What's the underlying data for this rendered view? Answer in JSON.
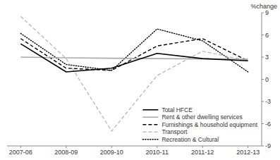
{
  "chart_data": {
    "type": "line",
    "categories": [
      "2007-08",
      "2008-09",
      "2009-10",
      "2010-11",
      "2011-12",
      "2012-13"
    ],
    "series": [
      {
        "name": "Total HFCE",
        "color": "#000000",
        "line_style": "solid",
        "values": [
          4.8,
          1.0,
          1.5,
          3.5,
          2.8,
          2.5
        ]
      },
      {
        "name": "Rent & other dwelling services",
        "color": "#aaaaaa",
        "line_style": "solid",
        "values": [
          3.0,
          2.9,
          2.85,
          2.8,
          2.75,
          2.7
        ]
      },
      {
        "name": "Furnishings & household equipment",
        "color": "#000000",
        "line_style": "dashed",
        "values": [
          5.5,
          1.5,
          1.2,
          4.5,
          5.5,
          2.5
        ]
      },
      {
        "name": "Transport",
        "color": "#bbbbbb",
        "line_style": "dashed",
        "values": [
          8.5,
          2.8,
          -7.0,
          0.5,
          3.8,
          2.5
        ]
      },
      {
        "name": "Recreation & Cultural",
        "color": "#000000",
        "line_style": "dotted",
        "values": [
          6.2,
          2.0,
          1.2,
          6.8,
          5.2,
          1.0
        ]
      }
    ],
    "ylim": [
      -9,
      9
    ],
    "yticks": [
      -9,
      -6,
      -3,
      0,
      3,
      6,
      9
    ],
    "y_label": "%change",
    "grid": false,
    "legend": "lower right"
  }
}
